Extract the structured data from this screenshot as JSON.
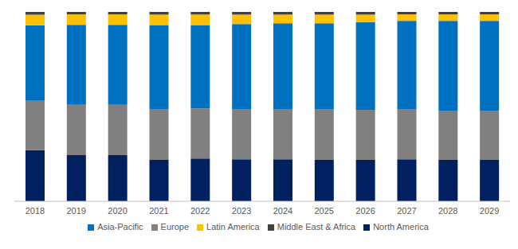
{
  "chart_data": {
    "type": "bar",
    "stacked": true,
    "tick_labels": "x",
    "legend": "bottom",
    "grid": false,
    "categories": [
      "2018",
      "2019",
      "2020",
      "2021",
      "2022",
      "2023",
      "2024",
      "2025",
      "2026",
      "2027",
      "2028",
      "2029"
    ],
    "ylim": [
      0,
      100
    ],
    "series": [
      {
        "name": "North America",
        "color": "#002060",
        "values": [
          27,
          24.4,
          24.4,
          21.8,
          22.6,
          22.2,
          22.2,
          21.8,
          21.8,
          22.2,
          21.8,
          21.8
        ]
      },
      {
        "name": "Europe",
        "color": "#808080",
        "values": [
          26,
          26.5,
          26.5,
          26.9,
          26.5,
          26.5,
          26.5,
          26.9,
          26.5,
          26.5,
          26.1,
          26.1
        ]
      },
      {
        "name": "Asia-Pacific",
        "color": "#0070c0",
        "values": [
          40,
          42.3,
          42.3,
          44.4,
          44.0,
          44.9,
          45.3,
          45.3,
          46.2,
          46.6,
          47.4,
          47.4
        ]
      },
      {
        "name": "Latin America",
        "color": "#ffc000",
        "values": [
          5.5,
          5.5,
          5.5,
          5.5,
          5.5,
          5,
          4.6,
          4.6,
          4.1,
          3.4,
          3.4,
          3.4
        ]
      },
      {
        "name": "Middle East & Africa",
        "color": "#404040",
        "values": [
          1.5,
          1.3,
          1.3,
          1.4,
          1.4,
          1.4,
          1.4,
          1.4,
          1.4,
          1.3,
          1.3,
          1.3
        ]
      }
    ]
  }
}
